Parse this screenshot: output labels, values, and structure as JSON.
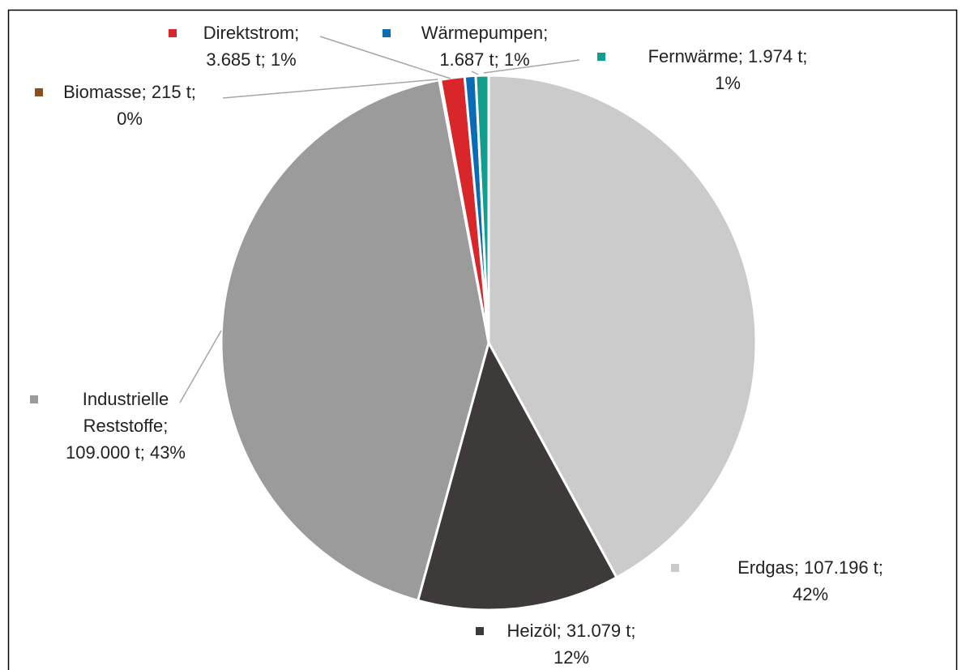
{
  "chart_data": {
    "type": "pie",
    "labels": [
      "Erdgas; 107.196 t; 42%",
      "Heizöl; 31.079 t; 12%",
      "Industrielle Reststoffe; 109.000 t; 43%",
      "Biomasse; 215 t; 0%",
      "Direktstrom; 3.685 t; 1%",
      "Wärmepumpen; 1.687 t; 1%",
      "Fernwärme; 1.974 t; 1%"
    ],
    "values": [
      107196,
      31079,
      109000,
      215,
      3685,
      1687,
      1974
    ],
    "colors": [
      "#cccbcb",
      "#3e3a39",
      "#9b9b9b",
      "#8b4e1f",
      "#d9262a",
      "#0a6cb4",
      "#119e8e"
    ]
  }
}
